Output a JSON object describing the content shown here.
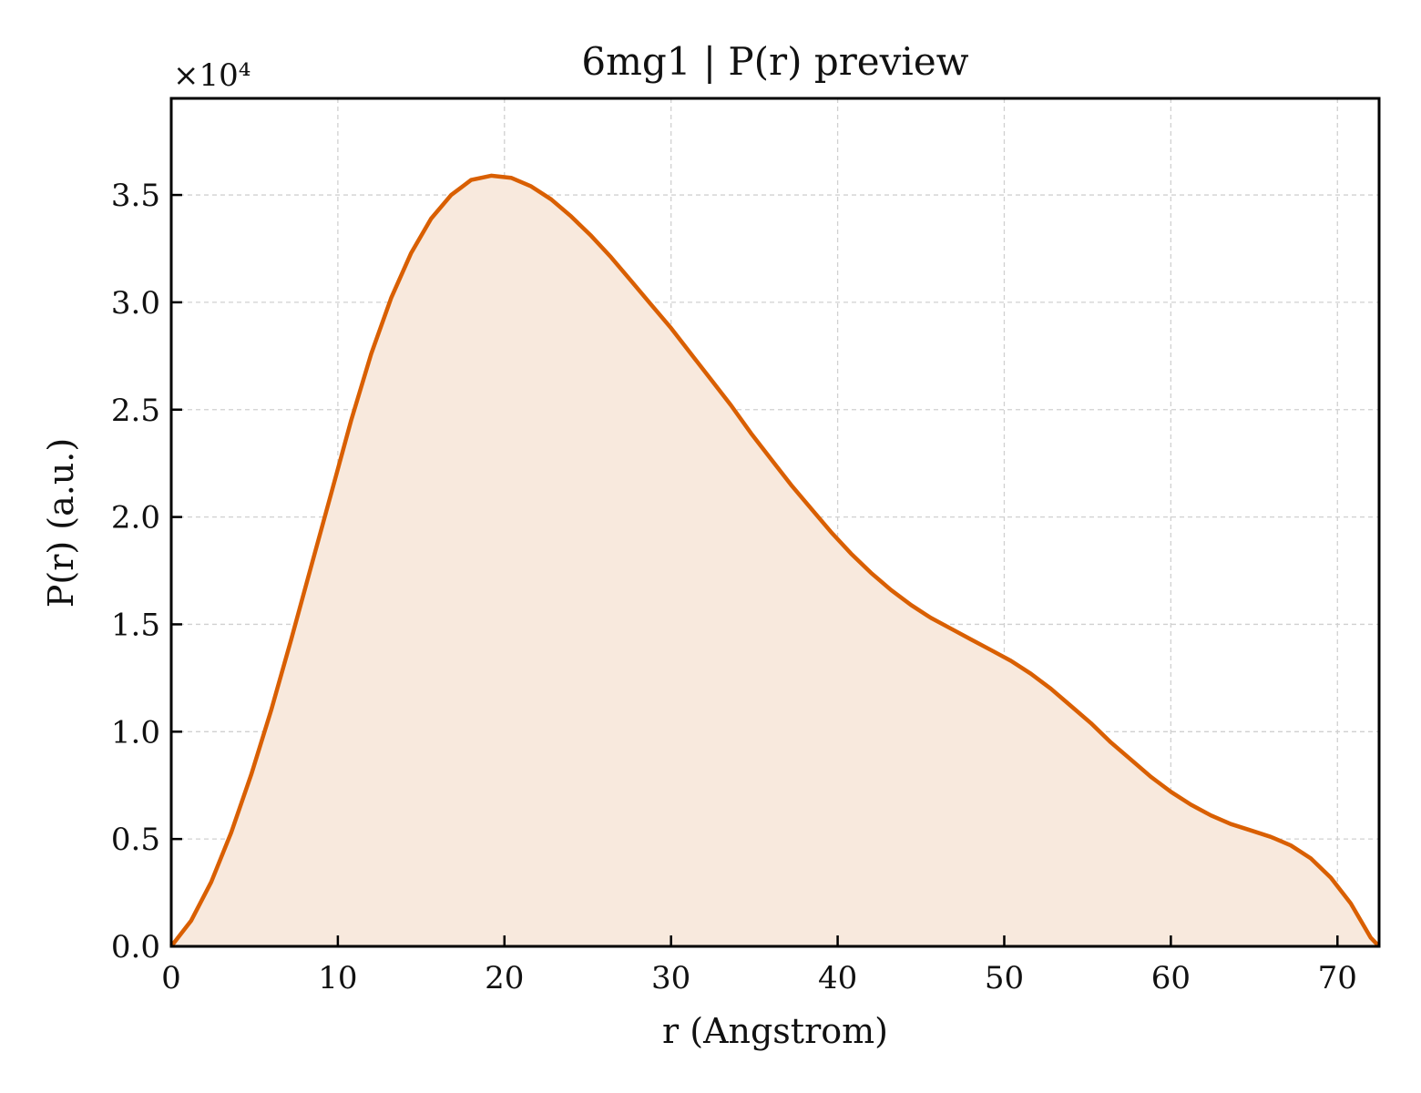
{
  "chart_data": {
    "type": "area",
    "title": "6mg1 | P(r) preview",
    "xlabel": "r (Angstrom)",
    "ylabel": "P(r) (a.u.)",
    "y_multiplier_label": "×10⁴",
    "xlim": [
      0,
      72.5
    ],
    "ylim": [
      0,
      39500
    ],
    "x_ticks": [
      0,
      10,
      20,
      30,
      40,
      50,
      60,
      70
    ],
    "x_tick_labels": [
      "0",
      "10",
      "20",
      "30",
      "40",
      "50",
      "60",
      "70"
    ],
    "y_ticks": [
      0,
      5000,
      10000,
      15000,
      20000,
      25000,
      30000,
      35000
    ],
    "y_tick_labels": [
      "0.0",
      "0.5",
      "1.0",
      "1.5",
      "2.0",
      "2.5",
      "3.0",
      "3.5"
    ],
    "grid": true,
    "line_color": "#d95f02",
    "fill_color": "#f8e9dd",
    "series": [
      {
        "x": [
          0,
          1.2,
          2.4,
          3.6,
          4.8,
          6.0,
          7.2,
          8.4,
          9.6,
          10.8,
          12.0,
          13.2,
          14.4,
          15.6,
          16.8,
          18.0,
          19.2,
          20.4,
          21.6,
          22.8,
          24.0,
          25.2,
          26.4,
          27.6,
          28.8,
          30.0,
          31.2,
          32.4,
          33.6,
          34.8,
          36.0,
          37.2,
          38.4,
          39.6,
          40.8,
          42.0,
          43.2,
          44.4,
          45.6,
          46.8,
          48.0,
          49.2,
          50.4,
          51.6,
          52.8,
          54.0,
          55.2,
          56.4,
          57.6,
          58.8,
          60.0,
          61.2,
          62.4,
          63.6,
          64.8,
          66.0,
          67.2,
          68.4,
          69.6,
          70.8,
          72.0,
          72.5
        ],
        "y": [
          0,
          1200,
          3000,
          5300,
          8000,
          11000,
          14300,
          17700,
          21100,
          24500,
          27600,
          30200,
          32300,
          33900,
          35000,
          35700,
          35900,
          35800,
          35400,
          34800,
          34000,
          33100,
          32100,
          31000,
          29900,
          28800,
          27600,
          26400,
          25200,
          23900,
          22700,
          21500,
          20400,
          19300,
          18300,
          17400,
          16600,
          15900,
          15300,
          14800,
          14300,
          13800,
          13300,
          12700,
          12000,
          11200,
          10400,
          9500,
          8700,
          7900,
          7200,
          6600,
          6100,
          5700,
          5400,
          5100,
          4700,
          4100,
          3200,
          2000,
          400,
          0
        ]
      }
    ]
  }
}
